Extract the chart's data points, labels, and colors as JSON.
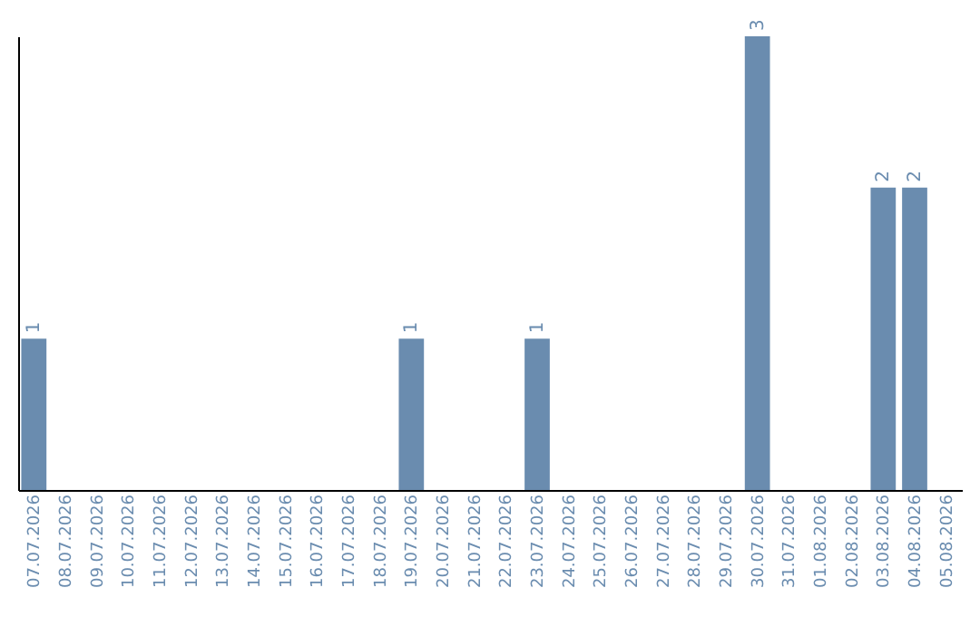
{
  "chart_data": {
    "type": "bar",
    "categories": [
      "07.07.2026",
      "08.07.2026",
      "09.07.2026",
      "10.07.2026",
      "11.07.2026",
      "12.07.2026",
      "13.07.2026",
      "14.07.2026",
      "15.07.2026",
      "16.07.2026",
      "17.07.2026",
      "18.07.2026",
      "19.07.2026",
      "20.07.2026",
      "21.07.2026",
      "22.07.2026",
      "23.07.2026",
      "24.07.2026",
      "25.07.2026",
      "26.07.2026",
      "27.07.2026",
      "28.07.2026",
      "29.07.2026",
      "30.07.2026",
      "31.07.2026",
      "01.08.2026",
      "02.08.2026",
      "03.08.2026",
      "04.08.2026",
      "05.08.2026"
    ],
    "values": [
      1,
      0,
      0,
      0,
      0,
      0,
      0,
      0,
      0,
      0,
      0,
      0,
      1,
      0,
      0,
      0,
      1,
      0,
      0,
      0,
      0,
      0,
      0,
      3,
      0,
      0,
      0,
      2,
      2,
      0
    ],
    "value_labels": [
      "1",
      null,
      null,
      null,
      null,
      null,
      null,
      null,
      null,
      null,
      null,
      null,
      "1",
      null,
      null,
      null,
      "1",
      null,
      null,
      null,
      null,
      null,
      null,
      "3",
      null,
      null,
      null,
      "2",
      "2",
      null
    ],
    "color": "#6a8caf",
    "ylim": [
      0,
      3
    ],
    "tick_labels": "x"
  }
}
